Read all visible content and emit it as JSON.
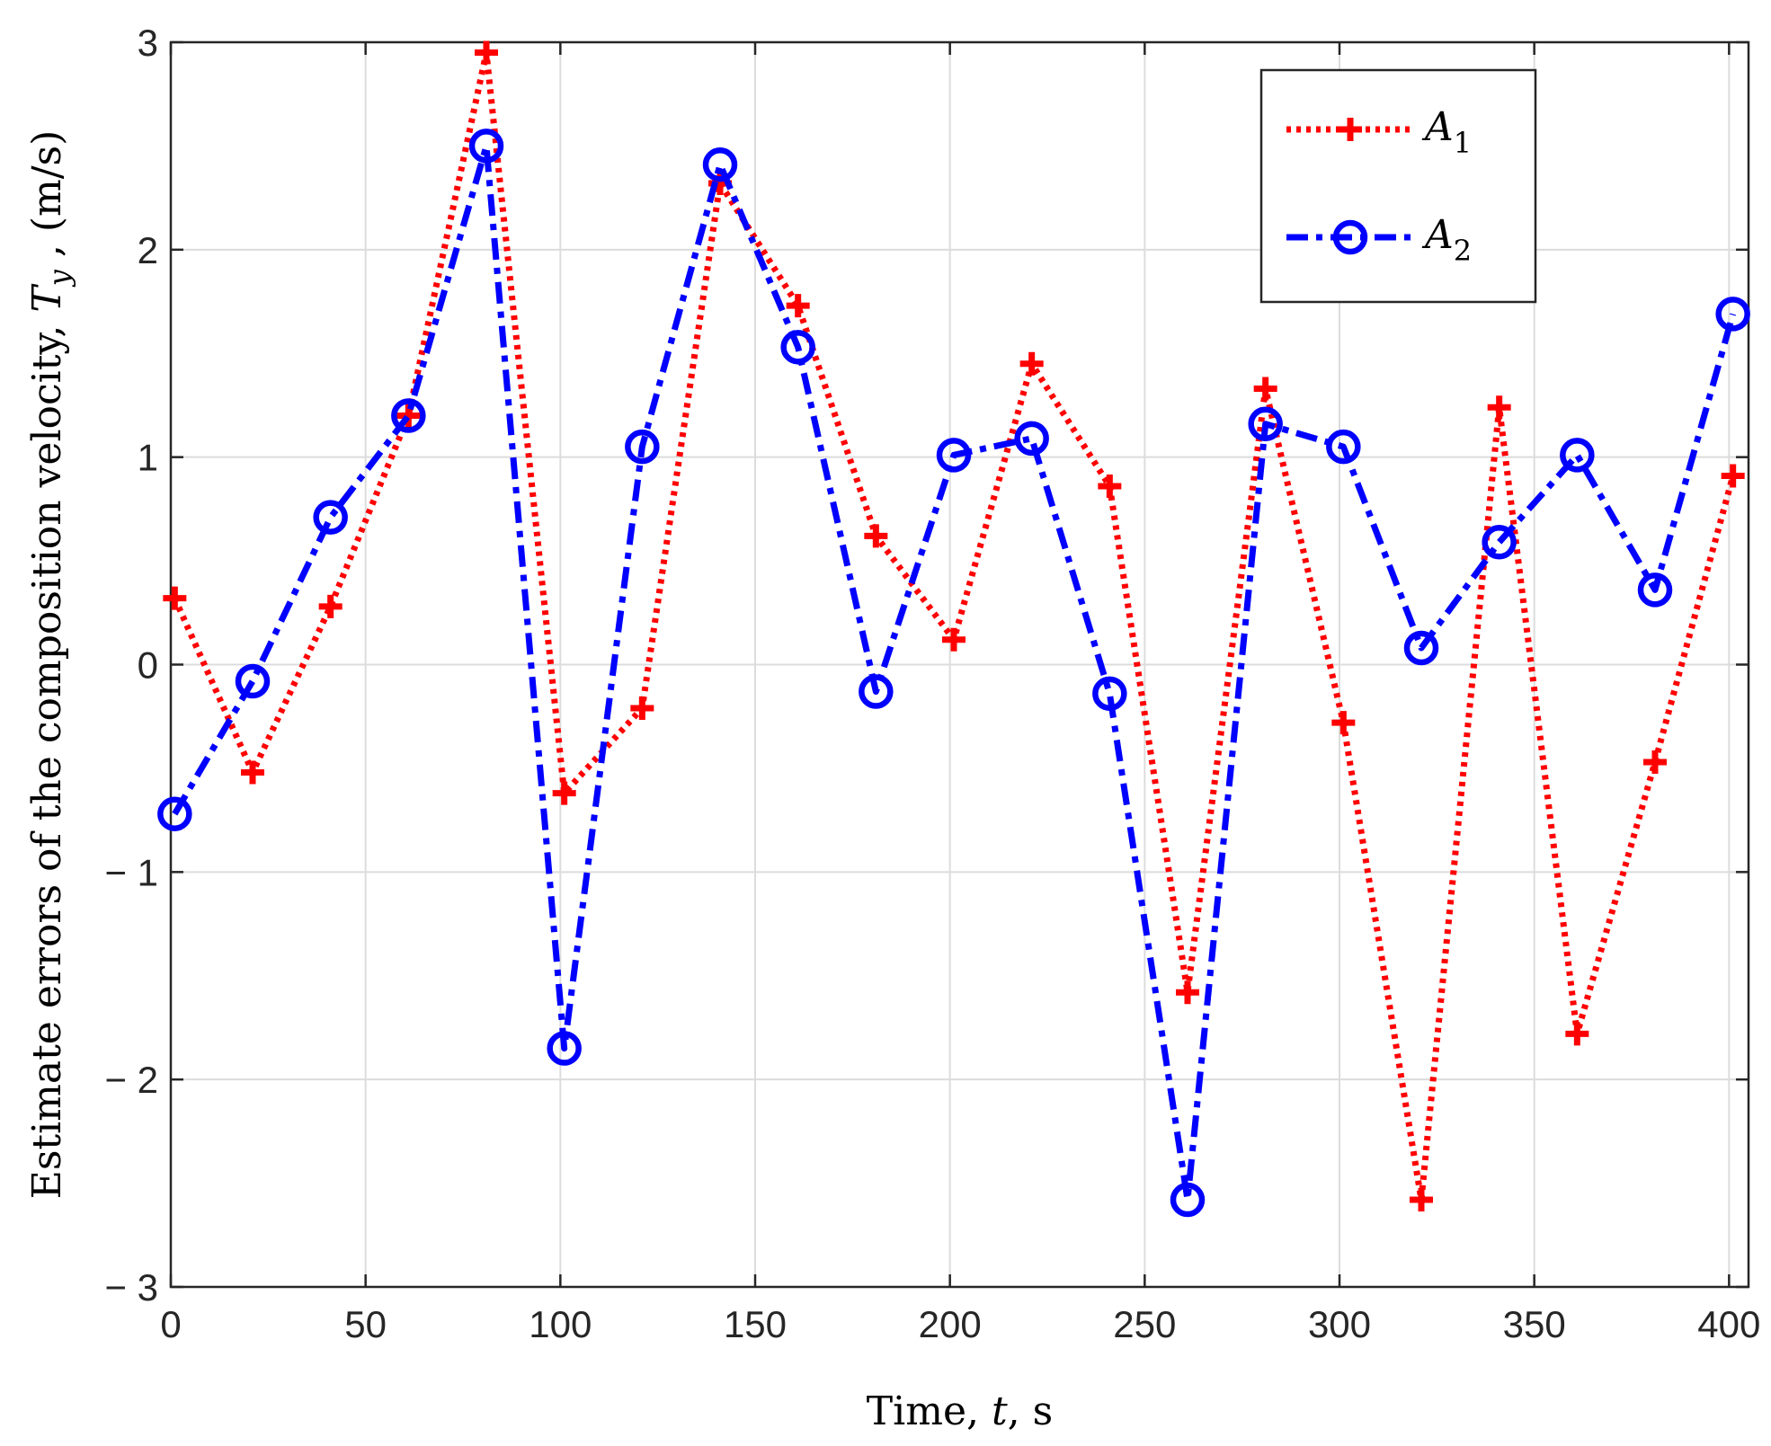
{
  "chart_data": {
    "type": "line",
    "title": "",
    "xlabel": "Time,  t, s",
    "xlabel_parts": {
      "prefix": "Time,  ",
      "var": "t",
      "suffix": ", s"
    },
    "ylabel": "Estimate errors of the composition velocity, T_y , (m/s)",
    "ylabel_parts": {
      "prefix": "Estimate errors of the composition velocity, ",
      "var": "T",
      "sub": "y",
      "suffix": " , (m/s)"
    },
    "xlim": [
      0,
      405
    ],
    "ylim": [
      -3,
      3
    ],
    "xticks": [
      0,
      50,
      100,
      150,
      200,
      250,
      300,
      350,
      400
    ],
    "yticks": [
      -3,
      -2,
      -1,
      0,
      1,
      2,
      3
    ],
    "ytick_labels": [
      "− 3",
      "− 2",
      "− 1",
      "0",
      "1",
      "2",
      "3"
    ],
    "grid": true,
    "legend_position": "top-right",
    "x": [
      1,
      21,
      41,
      61,
      81,
      101,
      121,
      141,
      161,
      181,
      201,
      221,
      241,
      261,
      281,
      301,
      321,
      341,
      361,
      381,
      401
    ],
    "series": [
      {
        "name": "A1",
        "label_main": "A",
        "label_sub": "1",
        "color": "#ff0000",
        "line_style": "dotted",
        "marker": "plus",
        "values": [
          0.32,
          -0.52,
          0.28,
          1.2,
          2.95,
          -0.62,
          -0.21,
          2.32,
          1.73,
          0.62,
          0.12,
          1.45,
          0.86,
          -1.58,
          1.33,
          -0.28,
          -2.58,
          1.24,
          -1.78,
          -0.47,
          0.91
        ]
      },
      {
        "name": "A2",
        "label_main": "A",
        "label_sub": "2",
        "color": "#0000ff",
        "line_style": "dash-dot",
        "marker": "circle",
        "values": [
          -0.72,
          -0.08,
          0.71,
          1.2,
          2.5,
          -1.85,
          1.05,
          2.41,
          1.53,
          -0.13,
          1.01,
          1.09,
          -0.14,
          -2.58,
          1.16,
          1.05,
          0.08,
          0.59,
          1.01,
          0.36,
          1.69
        ]
      }
    ]
  }
}
